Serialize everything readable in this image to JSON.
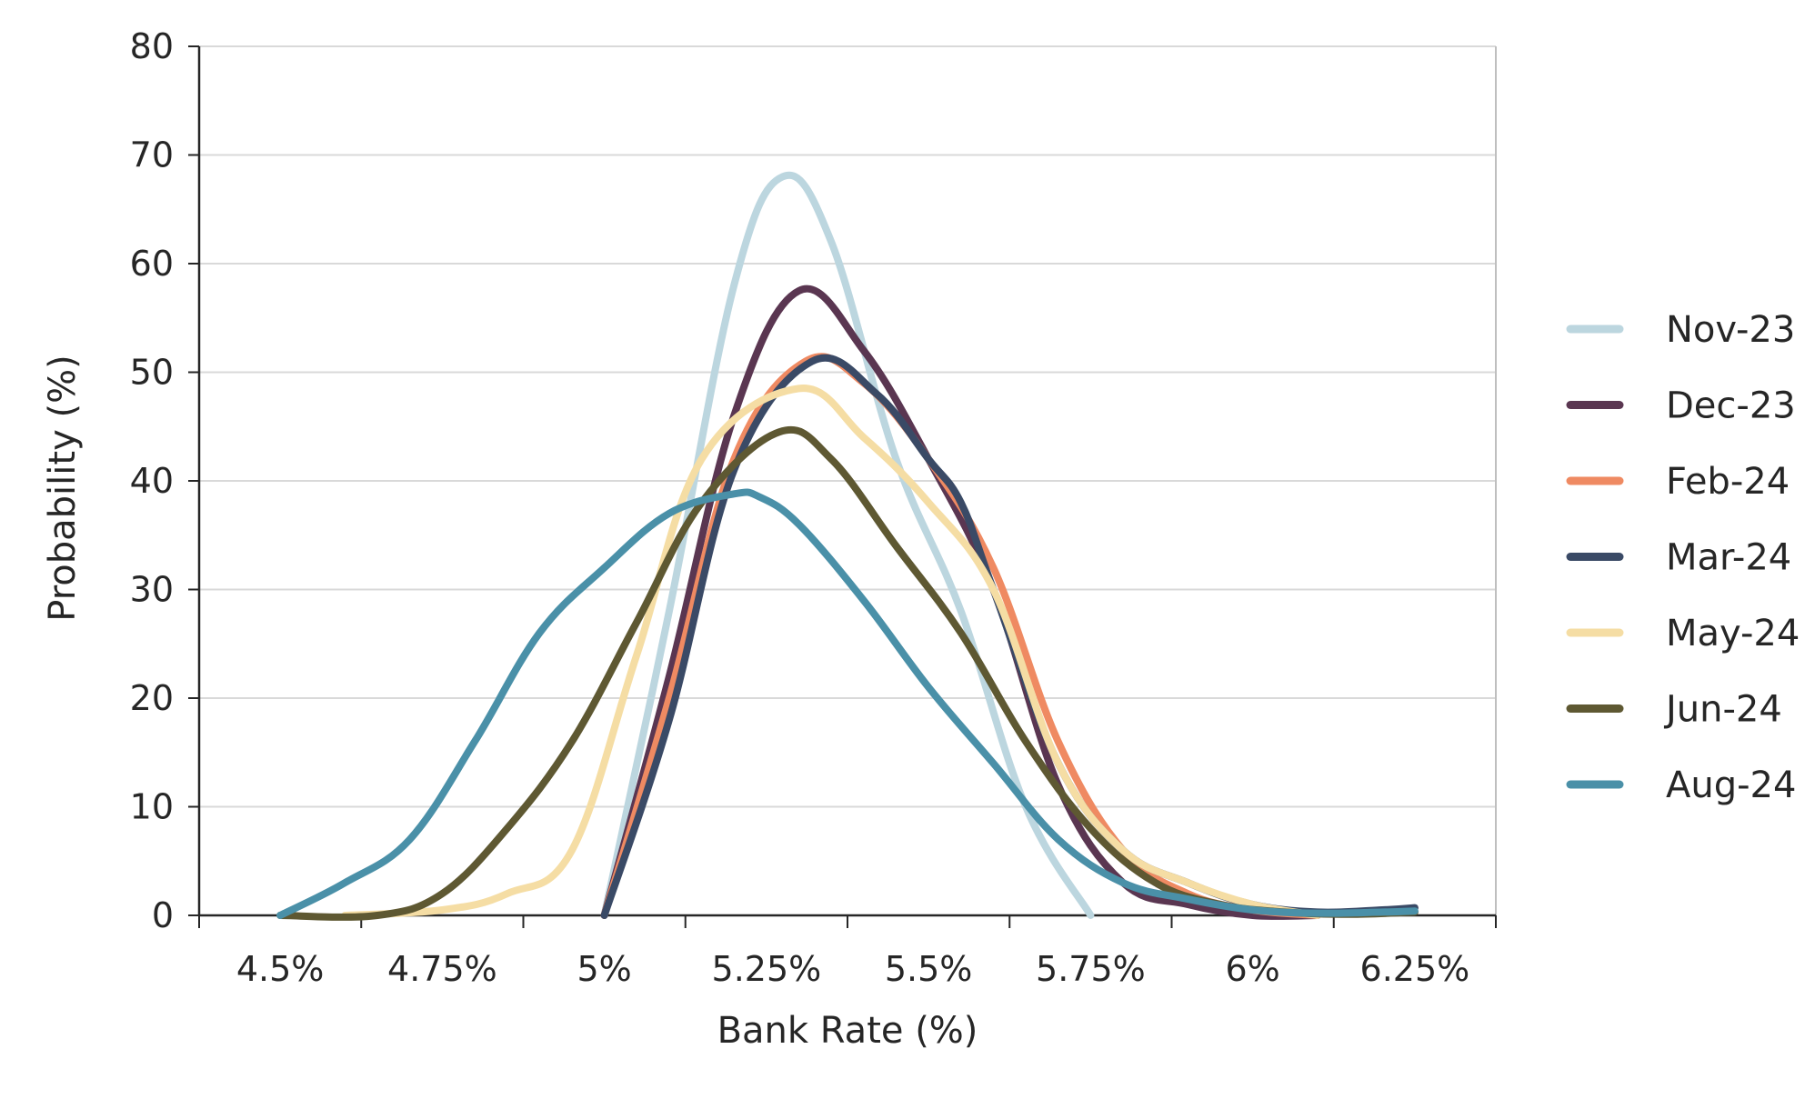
{
  "chart_data": {
    "type": "line",
    "title": "",
    "xlabel": "Bank Rate (%)",
    "ylabel": "Probability (%)",
    "xlim": [
      4.375,
      6.375
    ],
    "ylim": [
      0,
      80
    ],
    "y_ticks": [
      0,
      10,
      20,
      30,
      40,
      50,
      60,
      70,
      80
    ],
    "x_tick_labels": [
      "4.5%",
      "4.75%",
      "5%",
      "5.25%",
      "5.5%",
      "5.75%",
      "6%",
      "6.25%"
    ],
    "grid": "horizontal",
    "legend_position": "right",
    "series": [
      {
        "name": "Nov-23",
        "color": "#BCD6DF",
        "x": [
          5.0,
          5.1,
          5.2,
          5.275,
          5.35,
          5.45,
          5.55,
          5.65,
          5.75
        ],
        "y": [
          0,
          28,
          58,
          68,
          62,
          42,
          28,
          10,
          0
        ]
      },
      {
        "name": "Dec-23",
        "color": "#5A3651",
        "x": [
          5.0,
          5.1,
          5.2,
          5.3,
          5.4,
          5.5,
          5.6,
          5.7,
          5.8,
          5.9,
          6.0,
          6.1
        ],
        "y": [
          0,
          22,
          46,
          57.5,
          52,
          42,
          30,
          12,
          3,
          1,
          0,
          0
        ]
      },
      {
        "name": "Feb-24",
        "color": "#EF8A62",
        "x": [
          5.0,
          5.1,
          5.2,
          5.31,
          5.4,
          5.5,
          5.6,
          5.7,
          5.8,
          5.9,
          6.0,
          6.1
        ],
        "y": [
          0,
          20,
          42,
          51,
          49,
          42,
          32,
          16,
          6,
          2,
          0.5,
          0
        ]
      },
      {
        "name": "Mar-24",
        "color": "#3A4A66",
        "x": [
          5.0,
          5.1,
          5.2,
          5.32,
          5.42,
          5.5,
          5.55,
          5.6,
          5.7,
          5.8,
          5.9,
          6.0,
          6.1,
          6.2,
          6.25
        ],
        "y": [
          0,
          18,
          41,
          51,
          48,
          42,
          38,
          30,
          14,
          6,
          3,
          1,
          0.3,
          0.5,
          0.7
        ]
      },
      {
        "name": "May-24",
        "color": "#F5DDA4",
        "x": [
          4.6,
          4.75,
          4.85,
          4.95,
          5.05,
          5.15,
          5.3,
          5.4,
          5.5,
          5.6,
          5.7,
          5.8,
          5.9,
          6.0,
          6.1
        ],
        "y": [
          0,
          0.5,
          2,
          6,
          24,
          42,
          48.5,
          44,
          38,
          30,
          14,
          6,
          3,
          1,
          0
        ]
      },
      {
        "name": "Jun-24",
        "color": "#5E5832",
        "x": [
          4.5,
          4.65,
          4.75,
          4.85,
          4.95,
          5.05,
          5.15,
          5.27,
          5.35,
          5.45,
          5.55,
          5.65,
          5.75,
          5.85,
          5.95,
          6.05,
          6.15,
          6.25
        ],
        "y": [
          0,
          0,
          2,
          8,
          16,
          27,
          38,
          44.5,
          42,
          34,
          26,
          16,
          8,
          3,
          1,
          0.3,
          0.1,
          0.3
        ]
      },
      {
        "name": "Aug-24",
        "color": "#4A90A8",
        "x": [
          4.5,
          4.6,
          4.7,
          4.8,
          4.9,
          5.0,
          5.1,
          5.2,
          5.24,
          5.3,
          5.4,
          5.5,
          5.6,
          5.7,
          5.8,
          5.9,
          6.0,
          6.1,
          6.2,
          6.25
        ],
        "y": [
          0,
          3,
          7,
          16,
          26,
          32,
          37,
          38.8,
          38.5,
          36,
          29,
          21,
          14,
          7,
          3,
          1.5,
          0.5,
          0.2,
          0.3,
          0.4
        ]
      }
    ]
  }
}
